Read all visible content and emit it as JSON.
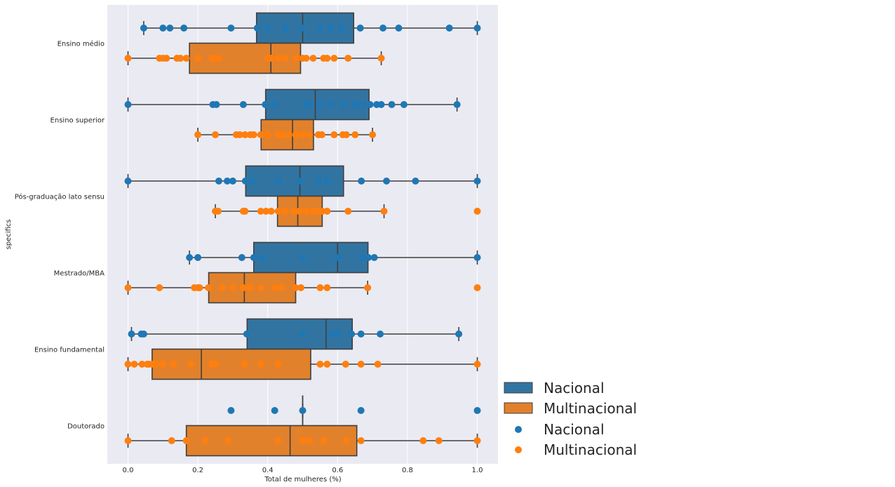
{
  "chart_data": {
    "type": "box",
    "orientation": "horizontal",
    "xlabel": "Total de mulheres (%)",
    "ylabel": "specifics",
    "xlim": [
      -0.06,
      1.06
    ],
    "xticks": [
      "0.0",
      "0.2",
      "0.4",
      "0.6",
      "0.8",
      "1.0"
    ],
    "grid": true,
    "legend_position": "lower-right-outside",
    "categories": [
      "Ensino médio",
      "Ensino superior",
      "Pós-graduação lato sensu",
      "Mestrado/MBA",
      "Ensino fundamental",
      "Doutorado"
    ],
    "legend": [
      {
        "label": "Nacional",
        "kind": "box",
        "group": "Nacional"
      },
      {
        "label": "Multinacional",
        "kind": "box",
        "group": "Multinacional"
      },
      {
        "label": "Nacional",
        "kind": "point",
        "group": "Nacional"
      },
      {
        "label": "Multinacional",
        "kind": "point",
        "group": "Multinacional"
      }
    ],
    "series": [
      {
        "group": "Nacional",
        "box_color": "#3274a1",
        "point_color": "#1f77b4",
        "boxes": [
          {
            "min": 0.045,
            "q1": 0.368,
            "median": 0.5,
            "q3": 0.646,
            "max": 1.0
          },
          {
            "min": 0.0,
            "q1": 0.394,
            "median": 0.536,
            "q3": 0.69,
            "max": 0.942
          },
          {
            "min": 0.0,
            "q1": 0.337,
            "median": 0.492,
            "q3": 0.617,
            "max": 1.0
          },
          {
            "min": 0.176,
            "q1": 0.36,
            "median": 0.6,
            "q3": 0.687,
            "max": 1.0
          },
          {
            "min": 0.01,
            "q1": 0.341,
            "median": 0.567,
            "q3": 0.642,
            "max": 0.947
          },
          {
            "min": 0.5,
            "q1": 0.5,
            "median": 0.5,
            "q3": 0.5,
            "max": 0.5
          }
        ],
        "points": [
          [
            0.045,
            0.1,
            0.12,
            0.16,
            0.295,
            0.37,
            0.4,
            0.45,
            0.5,
            0.55,
            0.58,
            0.61,
            0.665,
            0.73,
            0.775,
            0.92,
            1.0
          ],
          [
            0.0,
            0.243,
            0.253,
            0.33,
            0.393,
            0.42,
            0.51,
            0.52,
            0.55,
            0.58,
            0.615,
            0.65,
            0.67,
            0.693,
            0.712,
            0.725,
            0.755,
            0.79,
            0.942
          ],
          [
            0.0,
            0.26,
            0.284,
            0.3,
            0.336,
            0.357,
            0.43,
            0.49,
            0.545,
            0.57,
            0.668,
            0.74,
            0.823,
            1.0
          ],
          [
            0.176,
            0.2,
            0.326,
            0.36,
            0.385,
            0.5,
            0.6,
            0.67,
            0.688,
            0.705,
            1.0
          ],
          [
            0.01,
            0.038,
            0.045,
            0.34,
            0.5,
            0.58,
            0.6,
            0.64,
            0.667,
            0.722,
            0.947
          ],
          [
            0.295,
            0.42,
            0.5,
            0.667,
            1.0
          ]
        ]
      },
      {
        "group": "Multinacional",
        "box_color": "#e1812c",
        "point_color": "#ff7f0e",
        "boxes": [
          {
            "min": 0.0,
            "q1": 0.176,
            "median": 0.409,
            "q3": 0.494,
            "max": 0.725
          },
          {
            "min": 0.2,
            "q1": 0.381,
            "median": 0.471,
            "q3": 0.531,
            "max": 0.7
          },
          {
            "min": 0.25,
            "q1": 0.428,
            "median": 0.486,
            "q3": 0.556,
            "max": 0.733
          },
          {
            "min": 0.0,
            "q1": 0.231,
            "median": 0.333,
            "q3": 0.48,
            "max": 0.686
          },
          {
            "min": 0.0,
            "q1": 0.069,
            "median": 0.21,
            "q3": 0.523,
            "max": 1.0
          },
          {
            "min": 0.0,
            "q1": 0.167,
            "median": 0.464,
            "q3": 0.655,
            "max": 1.0
          }
        ],
        "points": [
          [
            0.0,
            0.09,
            0.1,
            0.11,
            0.14,
            0.15,
            0.167,
            0.2,
            0.24,
            0.25,
            0.26,
            0.4,
            0.41,
            0.43,
            0.45,
            0.48,
            0.5,
            0.51,
            0.53,
            0.56,
            0.57,
            0.59,
            0.63,
            0.725
          ],
          [
            0.2,
            0.25,
            0.31,
            0.32,
            0.335,
            0.35,
            0.36,
            0.38,
            0.4,
            0.43,
            0.44,
            0.46,
            0.48,
            0.5,
            0.52,
            0.545,
            0.555,
            0.59,
            0.615,
            0.625,
            0.65,
            0.7
          ],
          [
            0.25,
            0.258,
            0.33,
            0.335,
            0.38,
            0.395,
            0.41,
            0.43,
            0.45,
            0.475,
            0.49,
            0.51,
            0.53,
            0.545,
            0.556,
            0.57,
            0.63,
            0.733,
            1.0
          ],
          [
            0.0,
            0.09,
            0.19,
            0.2,
            0.205,
            0.23,
            0.27,
            0.3,
            0.33,
            0.35,
            0.38,
            0.42,
            0.44,
            0.48,
            0.495,
            0.55,
            0.57,
            0.686,
            1.0
          ],
          [
            0.0,
            0.018,
            0.04,
            0.055,
            0.06,
            0.07,
            0.08,
            0.1,
            0.13,
            0.18,
            0.24,
            0.25,
            0.333,
            0.38,
            0.43,
            0.55,
            0.57,
            0.623,
            0.667,
            0.715,
            1.0
          ],
          [
            0.0,
            0.125,
            0.167,
            0.222,
            0.286,
            0.429,
            0.5,
            0.52,
            0.56,
            0.625,
            0.667,
            0.845,
            0.89,
            1.0
          ]
        ]
      }
    ]
  }
}
